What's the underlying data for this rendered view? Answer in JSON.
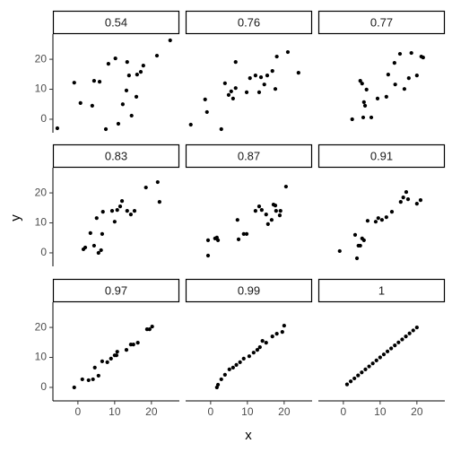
{
  "chart_data": {
    "type": "scatter",
    "xlabel": "x",
    "ylabel": "y",
    "xlim": [
      -6.8,
      27.6
    ],
    "ylim": [
      -4.5,
      28.4
    ],
    "xticks": [
      0,
      10,
      20
    ],
    "yticks": [
      0,
      10,
      20
    ],
    "color": "#000000",
    "panels": [
      {
        "title": "0.54",
        "x": [
          -5.6,
          -1,
          0.7,
          3.9,
          4.4,
          5.9,
          7.6,
          8.3,
          10.2,
          11,
          12.2,
          13.2,
          13.4,
          13.9,
          14.6,
          15.9,
          16.1,
          17.1,
          17.8,
          21.5,
          25.1
        ],
        "y": [
          -3,
          12.2,
          5.4,
          4.5,
          12.8,
          12.5,
          -3.3,
          18.5,
          20.3,
          -1.5,
          5,
          9.6,
          19.1,
          14.6,
          1.2,
          7.5,
          14.9,
          15.8,
          17.9,
          21.2,
          26.3
        ]
      },
      {
        "title": "0.76",
        "x": [
          -5.4,
          -1.5,
          -1,
          2.9,
          3.9,
          4.9,
          5.6,
          6.1,
          6.8,
          6.8,
          9.8,
          10.7,
          12.2,
          13.2,
          13.7,
          14.6,
          15.4,
          16.8,
          17.6,
          18,
          21,
          23.9
        ],
        "y": [
          -1.8,
          6.6,
          2.4,
          -3.3,
          12,
          8.1,
          9.3,
          6.9,
          19.1,
          10.4,
          9,
          13.7,
          14.6,
          9,
          14,
          11.6,
          14.6,
          16.1,
          10.1,
          20.9,
          22.4,
          15.5
        ]
      },
      {
        "title": "0.77",
        "x": [
          2.4,
          4.6,
          5.1,
          5.4,
          5.6,
          5.9,
          6.3,
          7.6,
          9.3,
          11.7,
          12.2,
          13.9,
          14.1,
          15.4,
          16.6,
          17.8,
          18.5,
          20,
          21.2,
          21.7
        ],
        "y": [
          0,
          12.8,
          11.9,
          0.6,
          5.7,
          4.5,
          9.9,
          0.6,
          6.9,
          7.5,
          14.9,
          18.8,
          11.6,
          21.8,
          10.1,
          13.7,
          22.1,
          14.6,
          20.9,
          20.6
        ]
      },
      {
        "title": "0.83",
        "x": [
          1.5,
          2,
          3.4,
          4.4,
          5.1,
          5.6,
          6.3,
          6.6,
          6.8,
          9.3,
          10,
          10.7,
          11.5,
          12,
          13.4,
          14.4,
          15.4,
          18.5,
          21.7,
          22.2
        ],
        "y": [
          1.2,
          1.8,
          6.6,
          2.4,
          11.6,
          0,
          0.9,
          6.3,
          13.7,
          14,
          10.4,
          14.3,
          15.5,
          17.3,
          14,
          12.8,
          14,
          21.8,
          23.6,
          17
        ]
      },
      {
        "title": "0.87",
        "x": [
          -0.7,
          -0.7,
          1.2,
          1.7,
          2,
          7.3,
          7.6,
          9,
          9.8,
          12.2,
          13.2,
          13.9,
          15.1,
          15.6,
          16.6,
          17.1,
          17.6,
          17.8,
          18.8,
          19,
          20.5
        ],
        "y": [
          -0.9,
          4.2,
          4.8,
          5.1,
          4.2,
          11,
          4.5,
          6.3,
          6.3,
          14,
          15.5,
          14.3,
          12.8,
          9.6,
          11,
          16.1,
          15.8,
          14,
          12.5,
          14,
          22.1
        ]
      },
      {
        "title": "0.91",
        "x": [
          -1,
          3.2,
          3.7,
          4.1,
          4.6,
          5.1,
          5.6,
          6.6,
          8.8,
          9.5,
          10.5,
          11.7,
          13.2,
          15.6,
          16.3,
          17.1,
          17.6,
          20,
          21
        ],
        "y": [
          0.6,
          6,
          -1.8,
          2.4,
          2.4,
          4.8,
          4.2,
          10.7,
          10.4,
          11.6,
          11,
          11.9,
          13.7,
          17,
          18.5,
          20.3,
          17.9,
          16.4,
          17.6
        ]
      },
      {
        "title": "0.97",
        "x": [
          -1,
          1.2,
          2.9,
          4.1,
          4.6,
          5.6,
          6.6,
          8,
          9,
          10,
          10.5,
          10.7,
          13.2,
          14.4,
          15.1,
          16.3,
          18.8,
          19.5,
          20.2
        ],
        "y": [
          0,
          2.7,
          2.4,
          2.7,
          6.6,
          3.9,
          8.7,
          8.4,
          9.6,
          10.7,
          10.7,
          11.9,
          12.5,
          14.3,
          14.3,
          14.9,
          19.4,
          19.4,
          20.3
        ]
      },
      {
        "title": "0.99",
        "x": [
          1.7,
          2,
          2.9,
          3.9,
          5.1,
          6.1,
          7,
          8,
          9,
          10.5,
          11.7,
          12.7,
          13.4,
          14.1,
          15.1,
          16.8,
          18,
          19.5,
          20
        ],
        "y": [
          0,
          0.9,
          2.7,
          4.2,
          6,
          6.6,
          7.5,
          8.4,
          9.6,
          10.4,
          11.6,
          12.5,
          13.4,
          15.5,
          14.9,
          17,
          17.9,
          18.5,
          20.6
        ]
      },
      {
        "title": "1",
        "x": [
          1,
          2,
          3,
          4,
          5,
          6,
          7,
          8,
          9,
          10,
          11,
          12,
          13,
          14,
          15,
          16,
          17,
          18,
          19,
          20
        ],
        "y": [
          1,
          2,
          3,
          4,
          5,
          6,
          7,
          8,
          9,
          10,
          11,
          12,
          13,
          14,
          15,
          16,
          17,
          18,
          19,
          20
        ]
      }
    ]
  }
}
